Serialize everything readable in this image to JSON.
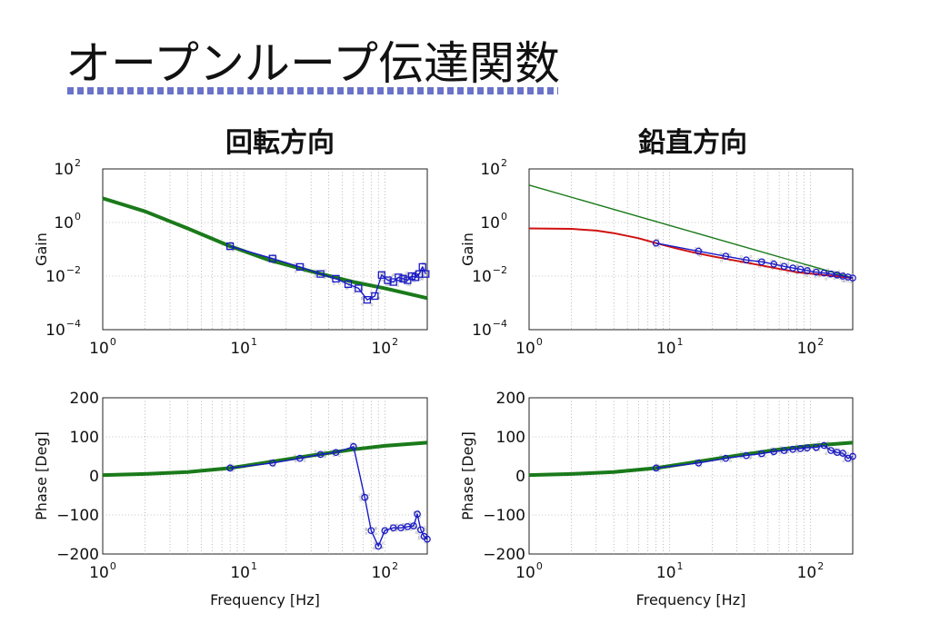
{
  "slide_title": "オープンループ伝達関数",
  "headings": {
    "left": "回転方向",
    "right": "鉛直方向"
  },
  "colors": {
    "fit": "#1a7a1a",
    "measured": "#1a1ac8",
    "model": "#d01010",
    "raw": "#b8b8b8",
    "title_rule": "#6a73c9"
  },
  "chart_data": [
    {
      "id": "rotation-gain",
      "type": "line",
      "x_scale": "log",
      "y_scale": "log",
      "xlim": [
        1,
        200
      ],
      "ylim": [
        0.0001,
        100
      ],
      "ylabel": "Gain",
      "xlabel": "",
      "grid": true,
      "x_ticks": [
        {
          "v": 1,
          "base": "10",
          "exp": "0"
        },
        {
          "v": 10,
          "base": "10",
          "exp": "1"
        },
        {
          "v": 100,
          "base": "10",
          "exp": "2"
        }
      ],
      "y_ticks": [
        {
          "v": 0.0001,
          "base": "10",
          "exp": "−4"
        },
        {
          "v": 0.01,
          "base": "10",
          "exp": "−2"
        },
        {
          "v": 1,
          "base": "10",
          "exp": "0"
        },
        {
          "v": 100,
          "base": "10",
          "exp": "2"
        }
      ],
      "series": [
        {
          "role": "fit",
          "marker": "none",
          "x": [
            1,
            2,
            4,
            8,
            15,
            30,
            60,
            100,
            200
          ],
          "y": [
            8,
            2.6,
            0.6,
            0.13,
            0.04,
            0.015,
            0.006,
            0.0035,
            0.0015
          ]
        },
        {
          "role": "measured",
          "marker": "square",
          "x": [
            8,
            16,
            25,
            35,
            45,
            55,
            65,
            75,
            85,
            95,
            105,
            115,
            125,
            135,
            145,
            155,
            165,
            175,
            185,
            195
          ],
          "y": [
            0.13,
            0.045,
            0.022,
            0.012,
            0.008,
            0.005,
            0.0035,
            0.0013,
            0.0018,
            0.011,
            0.007,
            0.006,
            0.009,
            0.008,
            0.007,
            0.01,
            0.009,
            0.012,
            0.022,
            0.012
          ]
        }
      ]
    },
    {
      "id": "rotation-phase",
      "type": "line",
      "x_scale": "log",
      "y_scale": "linear",
      "xlim": [
        1,
        200
      ],
      "ylim": [
        -200,
        200
      ],
      "ylabel": "Phase [Deg]",
      "xlabel": "Frequency [Hz]",
      "grid": true,
      "x_ticks": [
        {
          "v": 1,
          "base": "10",
          "exp": "0"
        },
        {
          "v": 10,
          "base": "10",
          "exp": "1"
        },
        {
          "v": 100,
          "base": "10",
          "exp": "2"
        }
      ],
      "y_ticks": [
        {
          "v": -200,
          "label": "−200"
        },
        {
          "v": -100,
          "label": "−100"
        },
        {
          "v": 0,
          "label": "0"
        },
        {
          "v": 100,
          "label": "100"
        },
        {
          "v": 200,
          "label": "200"
        }
      ],
      "series": [
        {
          "role": "fit",
          "marker": "none",
          "x": [
            1,
            2,
            4,
            8,
            15,
            30,
            60,
            100,
            200
          ],
          "y": [
            2,
            5,
            10,
            20,
            35,
            52,
            68,
            77,
            85
          ]
        },
        {
          "role": "measured",
          "marker": "circle",
          "x": [
            8,
            16,
            25,
            35,
            45,
            60,
            72,
            80,
            90,
            100,
            115,
            130,
            145,
            160,
            170,
            180,
            190,
            200
          ],
          "y": [
            20,
            33,
            45,
            55,
            60,
            75,
            -55,
            -140,
            -180,
            -140,
            -133,
            -133,
            -130,
            -128,
            -98,
            -138,
            -155,
            -162
          ]
        }
      ]
    },
    {
      "id": "vertical-gain",
      "type": "line",
      "x_scale": "log",
      "y_scale": "log",
      "xlim": [
        1,
        200
      ],
      "ylim": [
        0.0001,
        100
      ],
      "ylabel": "Gain",
      "xlabel": "",
      "grid": true,
      "x_ticks": [
        {
          "v": 1,
          "base": "10",
          "exp": "0"
        },
        {
          "v": 10,
          "base": "10",
          "exp": "1"
        },
        {
          "v": 100,
          "base": "10",
          "exp": "2"
        }
      ],
      "y_ticks": [
        {
          "v": 0.0001,
          "base": "10",
          "exp": "−4"
        },
        {
          "v": 0.01,
          "base": "10",
          "exp": "−2"
        },
        {
          "v": 1,
          "base": "10",
          "exp": "0"
        },
        {
          "v": 100,
          "base": "10",
          "exp": "2"
        }
      ],
      "series": [
        {
          "role": "fit",
          "marker": "none",
          "width": 1.4,
          "x": [
            1,
            200
          ],
          "y": [
            25,
            0.0085
          ]
        },
        {
          "role": "model",
          "marker": "none",
          "x": [
            1,
            2,
            3,
            4,
            6,
            8,
            11,
            15,
            20,
            40,
            80,
            200
          ],
          "y": [
            0.6,
            0.58,
            0.5,
            0.4,
            0.26,
            0.17,
            0.11,
            0.075,
            0.055,
            0.028,
            0.014,
            0.0085
          ]
        },
        {
          "role": "measured",
          "marker": "circle",
          "x": [
            8,
            16,
            25,
            35,
            45,
            55,
            65,
            75,
            85,
            95,
            110,
            125,
            140,
            155,
            170,
            185,
            200
          ],
          "y": [
            0.17,
            0.085,
            0.055,
            0.04,
            0.034,
            0.028,
            0.023,
            0.02,
            0.018,
            0.016,
            0.014,
            0.013,
            0.012,
            0.011,
            0.01,
            0.0092,
            0.0085
          ]
        }
      ]
    },
    {
      "id": "vertical-phase",
      "type": "line",
      "x_scale": "log",
      "y_scale": "linear",
      "xlim": [
        1,
        200
      ],
      "ylim": [
        -200,
        200
      ],
      "ylabel": "Phase [Deg]",
      "xlabel": "Frequency [Hz]",
      "grid": true,
      "x_ticks": [
        {
          "v": 1,
          "base": "10",
          "exp": "0"
        },
        {
          "v": 10,
          "base": "10",
          "exp": "1"
        },
        {
          "v": 100,
          "base": "10",
          "exp": "2"
        }
      ],
      "y_ticks": [
        {
          "v": -200,
          "label": "−200"
        },
        {
          "v": -100,
          "label": "−100"
        },
        {
          "v": 0,
          "label": "0"
        },
        {
          "v": 100,
          "label": "100"
        },
        {
          "v": 200,
          "label": "200"
        }
      ],
      "series": [
        {
          "role": "fit",
          "marker": "none",
          "x": [
            1,
            2,
            4,
            8,
            15,
            30,
            60,
            100,
            200
          ],
          "y": [
            2,
            5,
            10,
            20,
            35,
            52,
            68,
            77,
            85
          ]
        },
        {
          "role": "measured",
          "marker": "circle",
          "x": [
            8,
            16,
            25,
            35,
            45,
            55,
            65,
            75,
            85,
            95,
            110,
            125,
            140,
            155,
            170,
            185,
            200
          ],
          "y": [
            20,
            33,
            45,
            52,
            57,
            62,
            65,
            68,
            70,
            72,
            73,
            78,
            65,
            60,
            58,
            45,
            50
          ]
        }
      ]
    }
  ]
}
